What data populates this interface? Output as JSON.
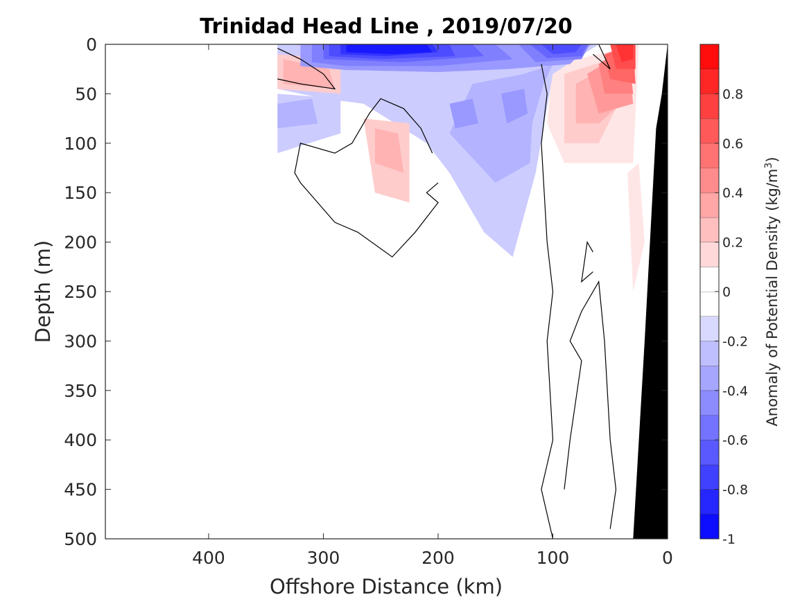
{
  "chart_data": {
    "type": "heatmap",
    "title": "Trinidad Head Line , 2019/07/20",
    "xlabel": "Offshore Distance (km)",
    "ylabel": "Depth (m)",
    "xlim": [
      490,
      0
    ],
    "ylim": [
      0,
      500
    ],
    "x_axis_reversed": true,
    "y_axis_reversed": true,
    "x_ticks": [
      {
        "value": 400,
        "label": "400"
      },
      {
        "value": 300,
        "label": "300"
      },
      {
        "value": 200,
        "label": "200"
      },
      {
        "value": 100,
        "label": "100"
      },
      {
        "value": 0,
        "label": "0"
      }
    ],
    "y_ticks": [
      {
        "value": 0,
        "label": "0"
      },
      {
        "value": 50,
        "label": "50"
      },
      {
        "value": 100,
        "label": "100"
      },
      {
        "value": 150,
        "label": "150"
      },
      {
        "value": 200,
        "label": "200"
      },
      {
        "value": 250,
        "label": "250"
      },
      {
        "value": 300,
        "label": "300"
      },
      {
        "value": 350,
        "label": "350"
      },
      {
        "value": 400,
        "label": "400"
      },
      {
        "value": 450,
        "label": "450"
      },
      {
        "value": 500,
        "label": "500"
      }
    ],
    "colorbar": {
      "label_main": "Anomaly of Potential Density (kg/m",
      "label_sup": "3",
      "label_end": ")",
      "range": [
        -1,
        1
      ],
      "levels": [
        -1,
        -0.9,
        -0.8,
        -0.7,
        -0.6,
        -0.5,
        -0.4,
        -0.3,
        -0.2,
        -0.1,
        0,
        0.1,
        0.2,
        0.3,
        0.4,
        0.5,
        0.6,
        0.7,
        0.8,
        0.9,
        1
      ],
      "ticks": [
        {
          "value": 0.8,
          "label": "0.8"
        },
        {
          "value": 0.6,
          "label": "0.6"
        },
        {
          "value": 0.4,
          "label": "0.4"
        },
        {
          "value": 0.2,
          "label": "0.2"
        },
        {
          "value": 0,
          "label": "0"
        },
        {
          "value": -0.2,
          "label": "-0.2"
        },
        {
          "value": -0.4,
          "label": "-0.4"
        },
        {
          "value": -0.6,
          "label": "-0.6"
        },
        {
          "value": -0.8,
          "label": "-0.8"
        },
        {
          "value": -1,
          "label": "-1"
        }
      ],
      "colormap": "blue-white-red"
    },
    "bathymetry": {
      "color": "#000000",
      "points": [
        [
          0,
          0
        ],
        [
          5,
          50
        ],
        [
          10,
          85
        ],
        [
          20,
          300
        ],
        [
          30,
          500
        ],
        [
          0,
          500
        ]
      ]
    },
    "anomaly_regions": [
      {
        "value": -0.9,
        "points": [
          [
            280,
            0
          ],
          [
            210,
            0
          ],
          [
            205,
            8
          ],
          [
            240,
            10
          ],
          [
            280,
            8
          ]
        ]
      },
      {
        "value": -0.8,
        "points": [
          [
            285,
            0
          ],
          [
            205,
            0
          ],
          [
            200,
            8
          ],
          [
            245,
            12
          ],
          [
            285,
            10
          ]
        ]
      },
      {
        "value": -0.7,
        "points": [
          [
            295,
            0
          ],
          [
            190,
            0
          ],
          [
            185,
            12
          ],
          [
            250,
            15
          ],
          [
            295,
            12
          ]
        ]
      },
      {
        "value": -0.7,
        "points": [
          [
            110,
            0
          ],
          [
            75,
            0
          ],
          [
            80,
            8
          ],
          [
            100,
            10
          ]
        ]
      },
      {
        "value": -0.6,
        "points": [
          [
            300,
            0
          ],
          [
            170,
            0
          ],
          [
            160,
            12
          ],
          [
            230,
            18
          ],
          [
            300,
            15
          ]
        ]
      },
      {
        "value": -0.6,
        "points": [
          [
            120,
            0
          ],
          [
            70,
            0
          ],
          [
            75,
            12
          ],
          [
            105,
            14
          ]
        ]
      },
      {
        "value": -0.5,
        "points": [
          [
            310,
            0
          ],
          [
            150,
            0
          ],
          [
            135,
            15
          ],
          [
            200,
            22
          ],
          [
            280,
            22
          ],
          [
            310,
            18
          ]
        ]
      },
      {
        "value": -0.5,
        "points": [
          [
            130,
            0
          ],
          [
            68,
            0
          ],
          [
            75,
            15
          ],
          [
            115,
            18
          ]
        ]
      },
      {
        "value": -0.4,
        "points": [
          [
            320,
            0
          ],
          [
            68,
            0
          ],
          [
            85,
            20
          ],
          [
            140,
            25
          ],
          [
            200,
            28
          ],
          [
            280,
            26
          ],
          [
            320,
            22
          ]
        ]
      },
      {
        "value": -0.4,
        "points": [
          [
            190,
            60
          ],
          [
            170,
            55
          ],
          [
            165,
            80
          ],
          [
            185,
            85
          ]
        ]
      },
      {
        "value": -0.4,
        "points": [
          [
            145,
            50
          ],
          [
            125,
            45
          ],
          [
            122,
            70
          ],
          [
            140,
            80
          ]
        ]
      },
      {
        "value": -0.3,
        "points": [
          [
            330,
            0
          ],
          [
            65,
            0
          ],
          [
            100,
            20
          ],
          [
            125,
            30
          ],
          [
            170,
            40
          ],
          [
            190,
            90
          ],
          [
            150,
            140
          ],
          [
            120,
            120
          ],
          [
            118,
            80
          ],
          [
            108,
            40
          ],
          [
            100,
            20
          ]
        ]
      },
      {
        "value": -0.3,
        "points": [
          [
            340,
            60
          ],
          [
            310,
            55
          ],
          [
            305,
            80
          ],
          [
            340,
            85
          ]
        ]
      },
      {
        "value": -0.2,
        "points": [
          [
            340,
            0
          ],
          [
            60,
            0
          ],
          [
            100,
            30
          ],
          [
            115,
            130
          ],
          [
            135,
            215
          ],
          [
            160,
            190
          ],
          [
            175,
            160
          ],
          [
            190,
            130
          ],
          [
            210,
            100
          ],
          [
            265,
            60
          ],
          [
            300,
            55
          ],
          [
            340,
            45
          ]
        ]
      },
      {
        "value": -0.2,
        "points": [
          [
            340,
            50
          ],
          [
            285,
            55
          ],
          [
            285,
            90
          ],
          [
            340,
            110
          ]
        ]
      },
      {
        "value": 0.3,
        "points": [
          [
            335,
            15
          ],
          [
            295,
            25
          ],
          [
            290,
            45
          ],
          [
            335,
            40
          ]
        ]
      },
      {
        "value": 0.3,
        "points": [
          [
            255,
            85
          ],
          [
            235,
            90
          ],
          [
            230,
            130
          ],
          [
            255,
            120
          ]
        ]
      },
      {
        "value": 0.2,
        "points": [
          [
            265,
            75
          ],
          [
            225,
            80
          ],
          [
            225,
            160
          ],
          [
            255,
            150
          ]
        ]
      },
      {
        "value": 0.2,
        "points": [
          [
            340,
            10
          ],
          [
            285,
            15
          ],
          [
            285,
            50
          ],
          [
            340,
            45
          ]
        ]
      },
      {
        "value": 0.1,
        "points": [
          [
            100,
            20
          ],
          [
            60,
            10
          ],
          [
            25,
            0
          ],
          [
            30,
            120
          ],
          [
            90,
            120
          ],
          [
            105,
            80
          ]
        ]
      },
      {
        "value": 0.2,
        "points": [
          [
            90,
            30
          ],
          [
            50,
            15
          ],
          [
            30,
            30
          ],
          [
            60,
            100
          ],
          [
            90,
            100
          ]
        ]
      },
      {
        "value": 0.3,
        "points": [
          [
            80,
            40
          ],
          [
            40,
            15
          ],
          [
            30,
            50
          ],
          [
            60,
            80
          ],
          [
            80,
            80
          ]
        ]
      },
      {
        "value": 0.4,
        "points": [
          [
            70,
            30
          ],
          [
            35,
            5
          ],
          [
            30,
            60
          ],
          [
            60,
            70
          ]
        ]
      },
      {
        "value": 0.5,
        "points": [
          [
            60,
            20
          ],
          [
            35,
            0
          ],
          [
            30,
            50
          ],
          [
            55,
            50
          ]
        ]
      },
      {
        "value": 0.6,
        "points": [
          [
            55,
            10
          ],
          [
            30,
            0
          ],
          [
            28,
            40
          ],
          [
            50,
            35
          ]
        ]
      },
      {
        "value": 0.7,
        "points": [
          [
            50,
            0
          ],
          [
            28,
            0
          ],
          [
            28,
            25
          ],
          [
            45,
            25
          ]
        ]
      },
      {
        "value": 0.8,
        "points": [
          [
            45,
            0
          ],
          [
            30,
            0
          ],
          [
            30,
            15
          ],
          [
            40,
            18
          ]
        ]
      },
      {
        "value": 0.1,
        "points": [
          [
            35,
            130
          ],
          [
            25,
            120
          ],
          [
            20,
            200
          ],
          [
            30,
            250
          ]
        ]
      }
    ],
    "zero_contours": [
      [
        [
          340,
          4
        ],
        [
          320,
          15
        ],
        [
          300,
          30
        ],
        [
          290,
          45
        ],
        [
          320,
          40
        ],
        [
          340,
          35
        ]
      ],
      [
        [
          200,
          140
        ],
        [
          210,
          150
        ],
        [
          200,
          160
        ],
        [
          220,
          190
        ],
        [
          240,
          215
        ],
        [
          270,
          190
        ],
        [
          290,
          180
        ],
        [
          320,
          140
        ],
        [
          325,
          130
        ],
        [
          320,
          100
        ],
        [
          290,
          110
        ],
        [
          275,
          100
        ],
        [
          260,
          70
        ],
        [
          250,
          55
        ],
        [
          230,
          65
        ],
        [
          215,
          85
        ],
        [
          205,
          110
        ]
      ],
      [
        [
          110,
          20
        ],
        [
          105,
          50
        ],
        [
          110,
          100
        ],
        [
          105,
          200
        ],
        [
          100,
          250
        ],
        [
          105,
          300
        ],
        [
          100,
          400
        ],
        [
          110,
          450
        ],
        [
          100,
          500
        ]
      ],
      [
        [
          65,
          210
        ],
        [
          70,
          200
        ],
        [
          75,
          240
        ],
        [
          65,
          230
        ]
      ],
      [
        [
          90,
          450
        ],
        [
          85,
          400
        ],
        [
          75,
          320
        ],
        [
          85,
          300
        ],
        [
          75,
          270
        ],
        [
          60,
          240
        ],
        [
          55,
          300
        ],
        [
          50,
          400
        ],
        [
          45,
          450
        ],
        [
          50,
          490
        ]
      ],
      [
        [
          60,
          0
        ],
        [
          50,
          25
        ],
        [
          65,
          10
        ]
      ]
    ]
  }
}
